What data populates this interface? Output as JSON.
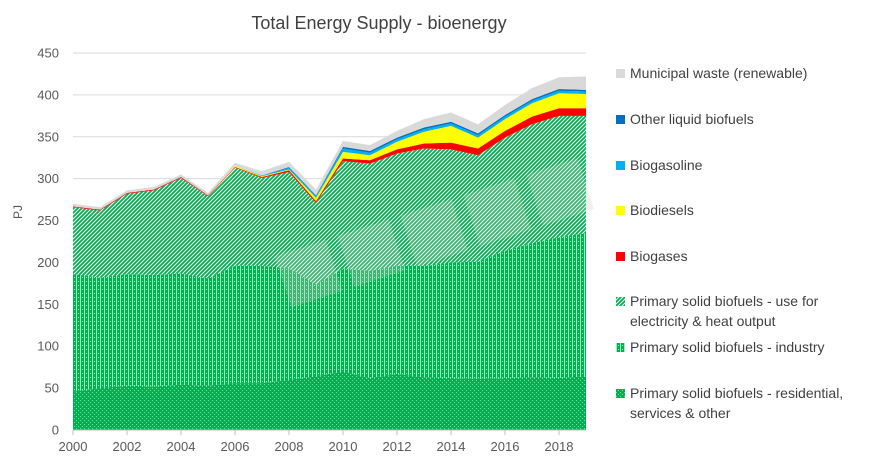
{
  "chart_data": {
    "type": "area",
    "stacked": true,
    "title": "Total Energy Supply - bioenergy",
    "xlabel": "",
    "ylabel": "PJ",
    "xlim": [
      2000,
      2019
    ],
    "ylim": [
      0,
      450
    ],
    "y_ticks": [
      0,
      50,
      100,
      150,
      200,
      250,
      300,
      350,
      400,
      450
    ],
    "x_ticks": [
      2000,
      2002,
      2004,
      2006,
      2008,
      2010,
      2012,
      2014,
      2016,
      2018
    ],
    "grid": true,
    "legend_position": "right",
    "x": [
      2000,
      2001,
      2002,
      2003,
      2004,
      2005,
      2006,
      2007,
      2008,
      2009,
      2010,
      2011,
      2012,
      2013,
      2014,
      2015,
      2016,
      2017,
      2018,
      2019
    ],
    "series": [
      {
        "name": "Primary solid biofuels - residential, services & other",
        "color": "#00b050",
        "pattern": "solid",
        "values": [
          46,
          50,
          53,
          52,
          54,
          53,
          56,
          56,
          60,
          64,
          70,
          62,
          67,
          63,
          62,
          61,
          62,
          63,
          62,
          64
        ]
      },
      {
        "name": "Primary solid biofuels - industry",
        "color": "#00b050",
        "pattern": "vertical",
        "values": [
          140,
          132,
          133,
          133,
          133,
          128,
          140,
          140,
          133,
          110,
          123,
          128,
          129,
          133,
          138,
          140,
          152,
          160,
          168,
          171
        ]
      },
      {
        "name": "Primary solid biofuels - use for electricity & heat output",
        "color": "#00b050",
        "pattern": "diagonal",
        "values": [
          80,
          80,
          96,
          101,
          114,
          98,
          117,
          105,
          115,
          97,
          128,
          128,
          134,
          140,
          135,
          127,
          135,
          142,
          145,
          140
        ]
      },
      {
        "name": "Biogases",
        "color": "#ff0000",
        "pattern": "solid",
        "values": [
          1,
          1,
          1,
          1,
          1,
          1,
          1,
          1,
          2,
          2,
          3,
          4,
          5,
          6,
          8,
          8,
          8,
          9,
          9,
          9
        ]
      },
      {
        "name": "Biodiesels",
        "color": "#ffff00",
        "pattern": "solid",
        "values": [
          0,
          0,
          0,
          0,
          0,
          0,
          1,
          1,
          1,
          4,
          8,
          6,
          9,
          14,
          20,
          13,
          14,
          16,
          18,
          17
        ]
      },
      {
        "name": "Biogasoline",
        "color": "#00b0f0",
        "pattern": "solid",
        "values": [
          0,
          0,
          0,
          0,
          0,
          0,
          0,
          1,
          2,
          2,
          4,
          3,
          3,
          3,
          3,
          3,
          3,
          3,
          3,
          3
        ]
      },
      {
        "name": "Other liquid biofuels",
        "color": "#0070c0",
        "pattern": "solid",
        "values": [
          0,
          0,
          0,
          0,
          0,
          0,
          0,
          0,
          1,
          1,
          2,
          2,
          2,
          2,
          2,
          2,
          2,
          2,
          2,
          2
        ]
      },
      {
        "name": "Municipal waste (renewable)",
        "color": "#d9d9d9",
        "pattern": "solid",
        "values": [
          3,
          3,
          3,
          3,
          3,
          3,
          4,
          5,
          6,
          7,
          7,
          7,
          8,
          10,
          11,
          11,
          12,
          13,
          14,
          16
        ]
      }
    ],
    "legend_order": [
      "Municipal waste (renewable)",
      "Other liquid biofuels",
      "Biogasoline",
      "Biodiesels",
      "Biogases",
      "Primary solid biofuels - use for electricity & heat output",
      "Primary solid biofuels - industry",
      "Primary solid biofuels - residential, services & other"
    ]
  }
}
